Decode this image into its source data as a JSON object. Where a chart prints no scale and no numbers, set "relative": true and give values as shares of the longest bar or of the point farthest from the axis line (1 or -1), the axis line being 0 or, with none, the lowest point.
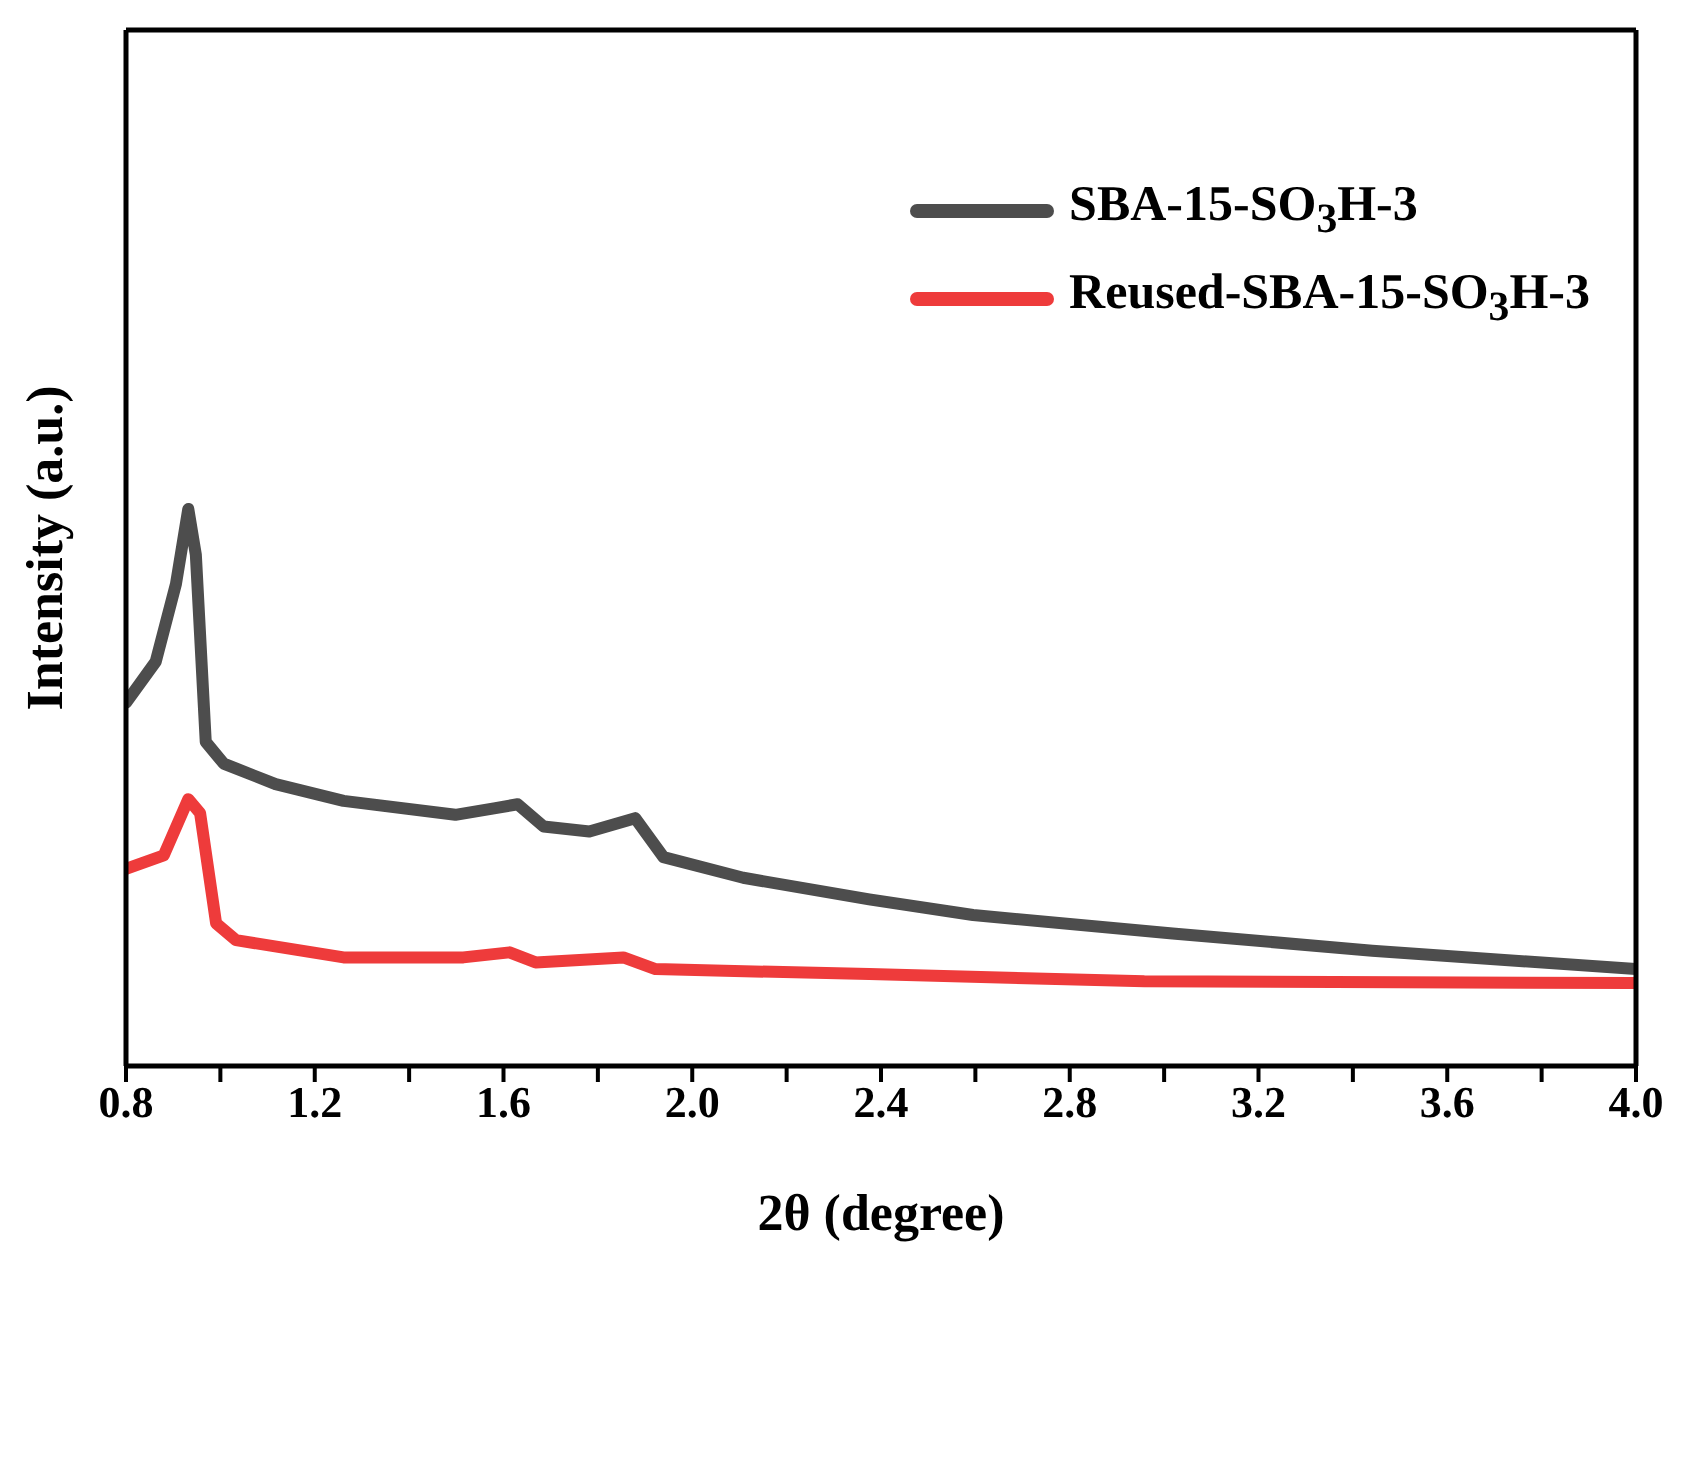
{
  "chart_data": {
    "type": "line",
    "xlabel": "2θ (degree)",
    "ylabel": "Intensity (a.u.)",
    "relative": true,
    "tick_labels": "x",
    "legend": "top right",
    "xlim": [
      0.8,
      4.0
    ],
    "xticks": [
      {
        "value": 0.8,
        "label": "0.8"
      },
      {
        "value": 1.0,
        "label": null
      },
      {
        "value": 1.2,
        "label": "1.2"
      },
      {
        "value": 1.4,
        "label": null
      },
      {
        "value": 1.6,
        "label": "1.6"
      },
      {
        "value": 1.8,
        "label": null
      },
      {
        "value": 2.0,
        "label": "2.0"
      },
      {
        "value": 2.2,
        "label": null
      },
      {
        "value": 2.4,
        "label": "2.4"
      },
      {
        "value": 2.6,
        "label": null
      },
      {
        "value": 2.8,
        "label": "2.8"
      },
      {
        "value": 3.0,
        "label": null
      },
      {
        "value": 3.2,
        "label": "3.2"
      },
      {
        "value": 3.4,
        "label": null
      },
      {
        "value": 3.6,
        "label": "3.6"
      },
      {
        "value": 3.8,
        "label": null
      },
      {
        "value": 4.0,
        "label": "4.0"
      }
    ],
    "series": [
      {
        "name": "SBA-15-SO$_{3}$H-3",
        "color": "#4d4d4d",
        "x": [
          0.8,
          0.863,
          0.906,
          0.932,
          0.948,
          0.969,
          1.007,
          1.117,
          1.261,
          1.498,
          1.583,
          1.63,
          1.685,
          1.782,
          1.879,
          1.939,
          2.108,
          2.375,
          2.595,
          3.018,
          3.441,
          4.0
        ],
        "values": [
          0.652,
          0.726,
          0.866,
          1.0,
          0.918,
          0.582,
          0.543,
          0.506,
          0.476,
          0.451,
          0.463,
          0.47,
          0.43,
          0.421,
          0.445,
          0.375,
          0.338,
          0.299,
          0.271,
          0.238,
          0.207,
          0.174
        ]
      },
      {
        "name": "Reused-SBA-15-SO$_{3}$H-3",
        "color": "#ee3b3b",
        "x": [
          0.8,
          0.88,
          0.932,
          0.957,
          0.991,
          1.033,
          1.261,
          1.515,
          1.613,
          1.668,
          1.854,
          1.922,
          2.375,
          2.958,
          4.0
        ],
        "values": [
          0.354,
          0.378,
          0.479,
          0.454,
          0.256,
          0.226,
          0.195,
          0.195,
          0.204,
          0.186,
          0.195,
          0.174,
          0.165,
          0.152,
          0.149
        ]
      }
    ]
  }
}
